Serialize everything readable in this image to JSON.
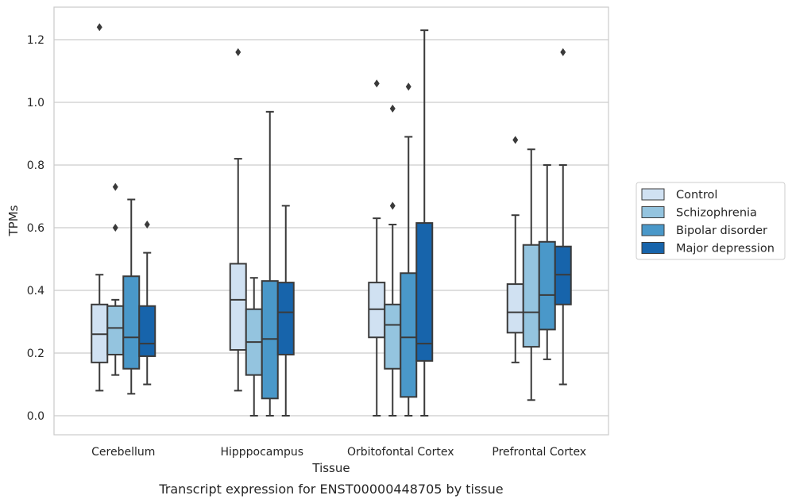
{
  "chart_data": {
    "type": "boxplot",
    "title": "",
    "caption": "Transcript expression for ENST00000448705 by tissue",
    "xlabel": "Tissue",
    "ylabel": "TPMs",
    "ylim": [
      -0.06,
      1.3
    ],
    "yticks": [
      0.0,
      0.2,
      0.4,
      0.6,
      0.8,
      1.0,
      1.2
    ],
    "ytick_labels": [
      "0.0",
      "0.2",
      "0.4",
      "0.6",
      "0.8",
      "1.0",
      "1.2"
    ],
    "grid": true,
    "legend_position": "right",
    "categories": [
      "Cerebellum",
      "Hipppocampus",
      "Orbitofontal Cortex",
      "Prefrontal Cortex"
    ],
    "series": [
      {
        "name": "Control",
        "color": "#d0e1f2",
        "boxes": [
          {
            "whisker_low": 0.08,
            "q1": 0.17,
            "median": 0.26,
            "q3": 0.355,
            "whisker_high": 0.45,
            "outliers": [
              1.24
            ]
          },
          {
            "whisker_low": 0.08,
            "q1": 0.21,
            "median": 0.37,
            "q3": 0.485,
            "whisker_high": 0.82,
            "outliers": [
              1.16
            ]
          },
          {
            "whisker_low": 0.0,
            "q1": 0.25,
            "median": 0.34,
            "q3": 0.425,
            "whisker_high": 0.63,
            "outliers": [
              1.06
            ]
          },
          {
            "whisker_low": 0.17,
            "q1": 0.265,
            "median": 0.33,
            "q3": 0.42,
            "whisker_high": 0.64,
            "outliers": [
              0.88
            ]
          }
        ]
      },
      {
        "name": "Schizophrenia",
        "color": "#94c4df",
        "boxes": [
          {
            "whisker_low": 0.13,
            "q1": 0.195,
            "median": 0.28,
            "q3": 0.35,
            "whisker_high": 0.37,
            "outliers": [
              0.6,
              0.73
            ]
          },
          {
            "whisker_low": 0.0,
            "q1": 0.13,
            "median": 0.235,
            "q3": 0.34,
            "whisker_high": 0.44,
            "outliers": []
          },
          {
            "whisker_low": 0.0,
            "q1": 0.15,
            "median": 0.29,
            "q3": 0.355,
            "whisker_high": 0.61,
            "outliers": [
              0.67,
              0.98
            ]
          },
          {
            "whisker_low": 0.05,
            "q1": 0.22,
            "median": 0.33,
            "q3": 0.545,
            "whisker_high": 0.85,
            "outliers": []
          }
        ]
      },
      {
        "name": "Bipolar disorder",
        "color": "#4a98c9",
        "boxes": [
          {
            "whisker_low": 0.07,
            "q1": 0.15,
            "median": 0.25,
            "q3": 0.445,
            "whisker_high": 0.69,
            "outliers": []
          },
          {
            "whisker_low": 0.0,
            "q1": 0.055,
            "median": 0.245,
            "q3": 0.43,
            "whisker_high": 0.97,
            "outliers": []
          },
          {
            "whisker_low": 0.0,
            "q1": 0.06,
            "median": 0.25,
            "q3": 0.455,
            "whisker_high": 0.89,
            "outliers": [
              1.05
            ]
          },
          {
            "whisker_low": 0.18,
            "q1": 0.275,
            "median": 0.385,
            "q3": 0.555,
            "whisker_high": 0.8,
            "outliers": []
          }
        ]
      },
      {
        "name": "Major depression",
        "color": "#1764ab",
        "boxes": [
          {
            "whisker_low": 0.1,
            "q1": 0.19,
            "median": 0.23,
            "q3": 0.35,
            "whisker_high": 0.52,
            "outliers": [
              0.61
            ]
          },
          {
            "whisker_low": 0.0,
            "q1": 0.195,
            "median": 0.33,
            "q3": 0.425,
            "whisker_high": 0.67,
            "outliers": []
          },
          {
            "whisker_low": 0.0,
            "q1": 0.175,
            "median": 0.23,
            "q3": 0.615,
            "whisker_high": 1.23,
            "outliers": []
          },
          {
            "whisker_low": 0.1,
            "q1": 0.355,
            "median": 0.45,
            "q3": 0.54,
            "whisker_high": 0.8,
            "outliers": [
              1.16
            ]
          }
        ]
      }
    ]
  }
}
